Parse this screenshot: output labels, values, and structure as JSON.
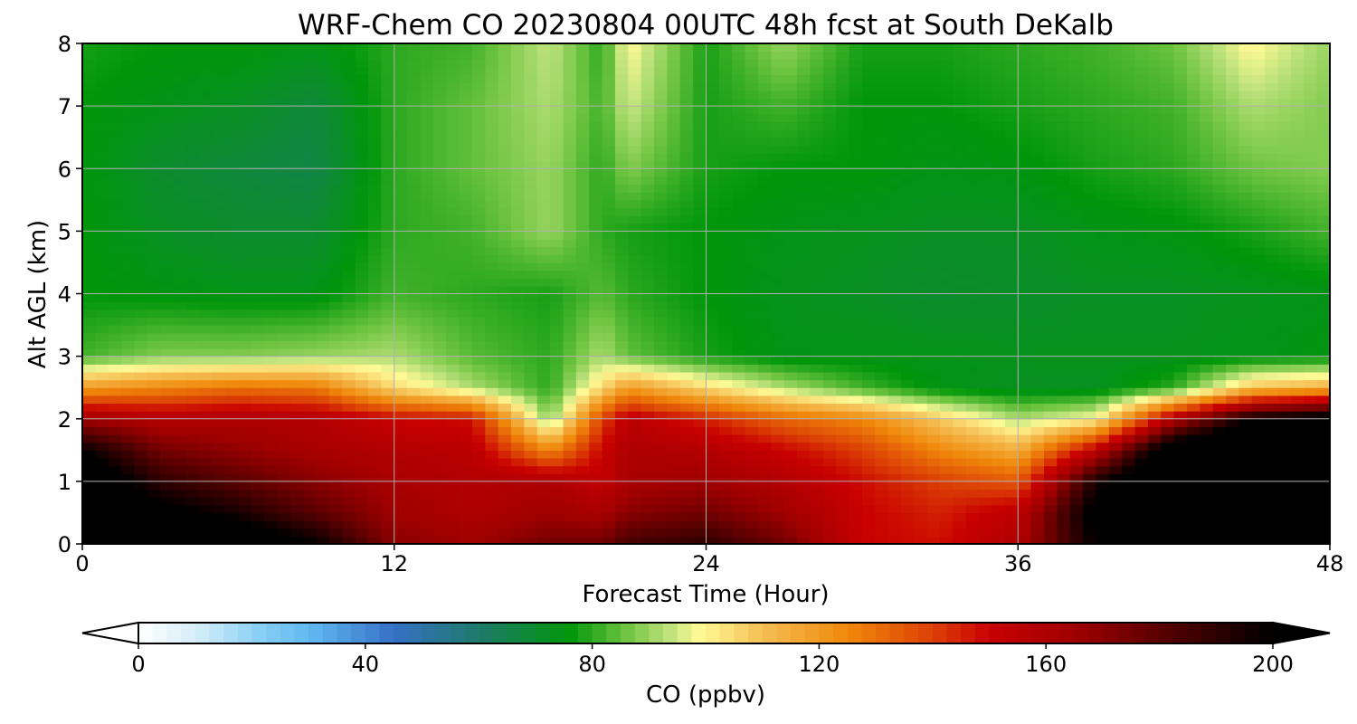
{
  "chart_data": {
    "type": "heatmap",
    "title": "WRF-Chem CO  20230804 00UTC 48h fcst at South DeKalb",
    "xlabel": "Forecast Time (Hour)",
    "ylabel": "Alt AGL (km)",
    "xlim": [
      0,
      48
    ],
    "ylim": [
      0,
      8
    ],
    "x_ticks": [
      0,
      12,
      24,
      36,
      48
    ],
    "y_ticks": [
      0,
      1,
      2,
      3,
      4,
      5,
      6,
      7,
      8
    ],
    "grid": true,
    "x": [
      0,
      3,
      6,
      9,
      12,
      15,
      18,
      20,
      21,
      24,
      27,
      30,
      33,
      36,
      39,
      42,
      45,
      48
    ],
    "levels": [
      {
        "alt": 0.0,
        "values": [
          230,
          225,
          215,
          200,
          170,
          165,
          175,
          175,
          185,
          190,
          175,
          150,
          148,
          160,
          200,
          230,
          240,
          240
        ]
      },
      {
        "alt": 0.5,
        "values": [
          220,
          205,
          195,
          180,
          165,
          160,
          165,
          162,
          170,
          175,
          165,
          150,
          145,
          155,
          205,
          230,
          240,
          240
        ]
      },
      {
        "alt": 1.0,
        "values": [
          215,
          190,
          180,
          170,
          162,
          158,
          160,
          152,
          162,
          165,
          158,
          148,
          140,
          135,
          195,
          225,
          235,
          240
        ]
      },
      {
        "alt": 1.5,
        "values": [
          200,
          175,
          168,
          162,
          158,
          155,
          125,
          150,
          160,
          158,
          150,
          140,
          125,
          115,
          155,
          215,
          230,
          235
        ]
      },
      {
        "alt": 2.0,
        "values": [
          165,
          158,
          160,
          158,
          150,
          148,
          88,
          140,
          155,
          145,
          132,
          125,
          108,
          92,
          100,
          160,
          200,
          210
        ]
      },
      {
        "alt": 2.5,
        "values": [
          120,
          125,
          130,
          128,
          105,
          92,
          80,
          105,
          120,
          105,
          92,
          82,
          74,
          72,
          72,
          80,
          110,
          115
        ]
      },
      {
        "alt": 3.0,
        "values": [
          82,
          88,
          88,
          90,
          92,
          84,
          80,
          92,
          85,
          78,
          74,
          74,
          74,
          73,
          73,
          73,
          74,
          75
        ]
      },
      {
        "alt": 4.0,
        "values": [
          76,
          75,
          74,
          74,
          82,
          80,
          78,
          84,
          80,
          76,
          73,
          72,
          70,
          71,
          72,
          72,
          73,
          74
        ]
      },
      {
        "alt": 5.0,
        "values": [
          76,
          72,
          70,
          70,
          80,
          82,
          90,
          80,
          78,
          76,
          74,
          73,
          72,
          72,
          74,
          75,
          78,
          82
        ]
      },
      {
        "alt": 6.0,
        "values": [
          76,
          70,
          68,
          66,
          80,
          85,
          90,
          80,
          88,
          78,
          76,
          76,
          74,
          75,
          78,
          80,
          86,
          88
        ]
      },
      {
        "alt": 7.0,
        "values": [
          76,
          74,
          72,
          68,
          80,
          85,
          92,
          82,
          95,
          78,
          82,
          76,
          76,
          78,
          80,
          82,
          92,
          88
        ]
      },
      {
        "alt": 8.0,
        "values": [
          78,
          76,
          76,
          74,
          80,
          82,
          94,
          80,
          100,
          78,
          90,
          78,
          78,
          80,
          82,
          86,
          100,
          90
        ]
      }
    ],
    "colorbar": {
      "label": "CO  (ppbv)",
      "ticks": [
        0,
        40,
        80,
        120,
        160,
        200
      ],
      "range": [
        0,
        200
      ],
      "extend": "both",
      "stops": [
        {
          "v": 0,
          "c": "#ffffff"
        },
        {
          "v": 10,
          "c": "#d7eef9"
        },
        {
          "v": 22,
          "c": "#85cdf4"
        },
        {
          "v": 30,
          "c": "#62baf2"
        },
        {
          "v": 45,
          "c": "#3570c6"
        },
        {
          "v": 60,
          "c": "#1e7a6a"
        },
        {
          "v": 76,
          "c": "#00960a"
        },
        {
          "v": 86,
          "c": "#6ec440"
        },
        {
          "v": 93,
          "c": "#b8e078"
        },
        {
          "v": 99,
          "c": "#fffa96"
        },
        {
          "v": 110,
          "c": "#f5bf55"
        },
        {
          "v": 125,
          "c": "#f0880a"
        },
        {
          "v": 140,
          "c": "#dc4005"
        },
        {
          "v": 150,
          "c": "#c80000"
        },
        {
          "v": 165,
          "c": "#a00000"
        },
        {
          "v": 180,
          "c": "#5a0000"
        },
        {
          "v": 200,
          "c": "#000000"
        }
      ]
    }
  }
}
